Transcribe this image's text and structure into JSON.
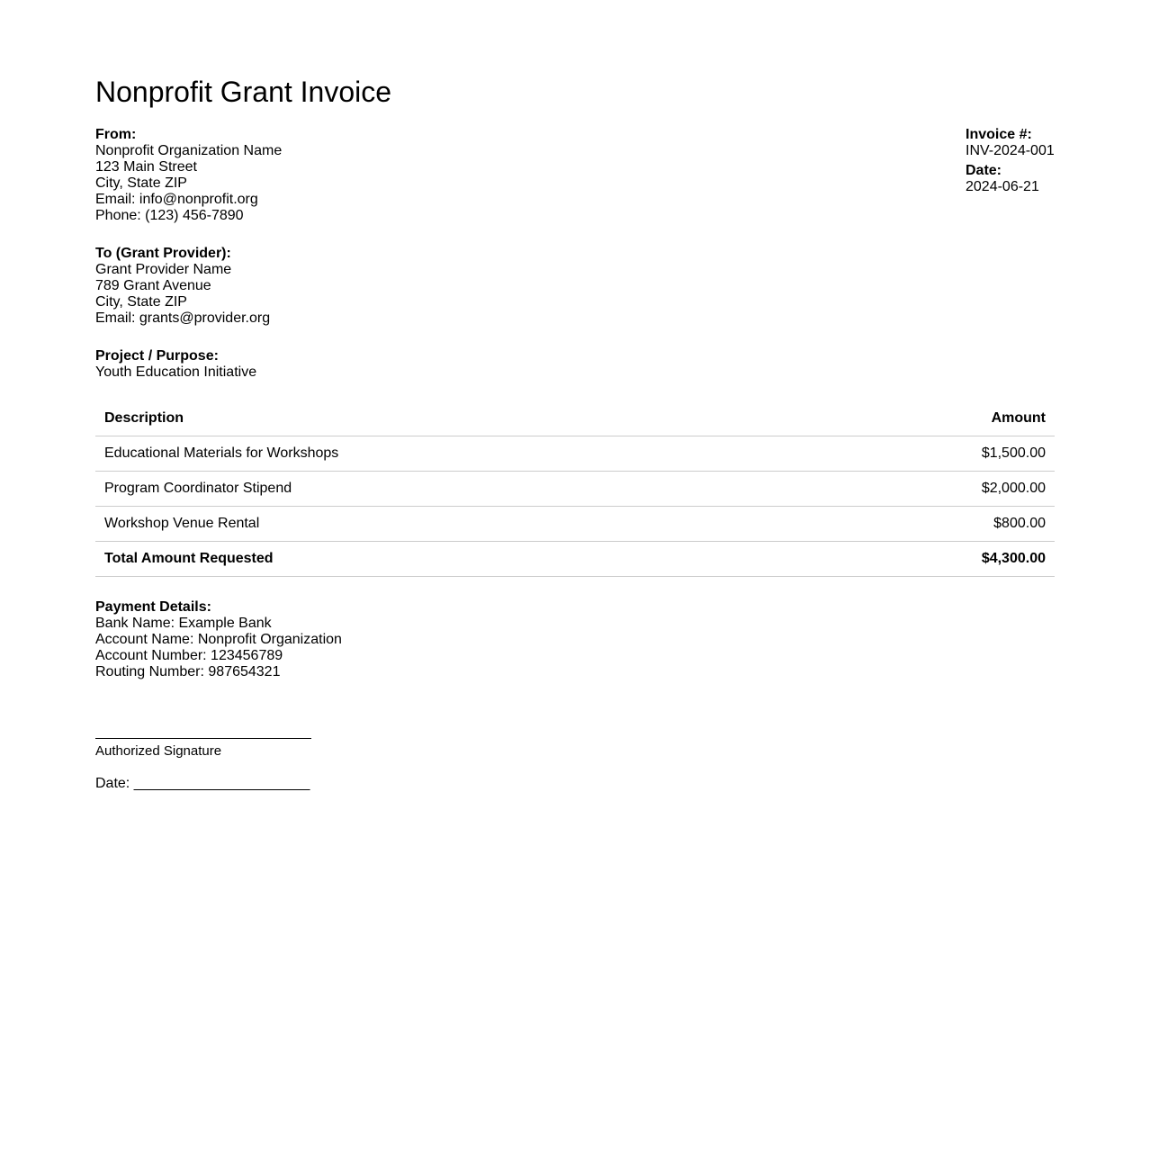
{
  "title": "Nonprofit Grant Invoice",
  "from": {
    "label": "From:",
    "lines": [
      "Nonprofit Organization Name",
      "123 Main Street",
      "City, State ZIP",
      "Email: info@nonprofit.org",
      "Phone: (123) 456-7890"
    ]
  },
  "invoice": {
    "number_label": "Invoice #:",
    "number": "INV-2024-001",
    "date_label": "Date:",
    "date": "2024-06-21"
  },
  "to": {
    "label": "To (Grant Provider):",
    "lines": [
      "Grant Provider Name",
      "789 Grant Avenue",
      "City, State ZIP",
      "Email: grants@provider.org"
    ]
  },
  "project": {
    "label": "Project / Purpose:",
    "value": "Youth Education Initiative"
  },
  "table": {
    "headers": [
      "Description",
      "Amount"
    ],
    "rows": [
      [
        "Educational Materials for Workshops",
        "$1,500.00"
      ],
      [
        "Program Coordinator Stipend",
        "$2,000.00"
      ],
      [
        "Workshop Venue Rental",
        "$800.00"
      ]
    ],
    "total": [
      "Total Amount Requested",
      "$4,300.00"
    ]
  },
  "payment": {
    "label": "Payment Details:",
    "lines": [
      "Bank Name: Example Bank",
      "Account Name: Nonprofit Organization",
      "Account Number: 123456789",
      "Routing Number: 987654321"
    ]
  },
  "signature": {
    "label": "Authorized Signature",
    "date_line": "Date: ______________________"
  }
}
